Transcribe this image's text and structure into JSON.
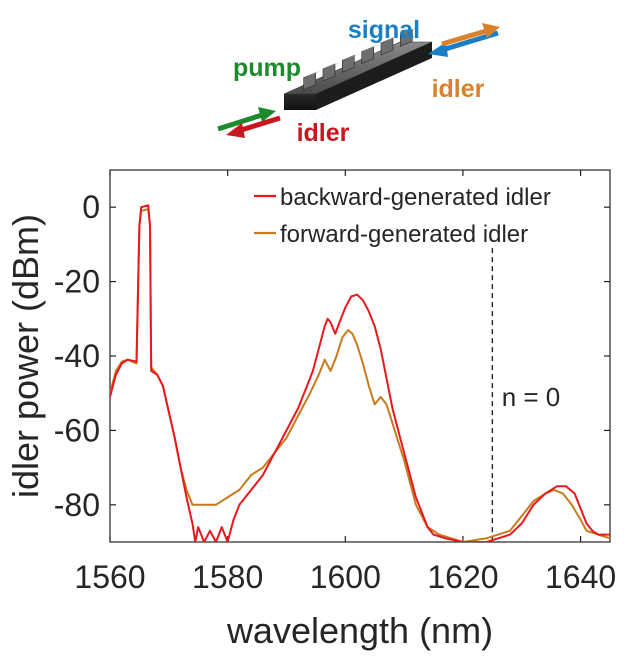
{
  "inset": {
    "labels": {
      "signal": "signal",
      "pump": "pump",
      "idler_forward": "idler",
      "idler_backward": "idler"
    },
    "colors": {
      "signal": "#1a7fc4",
      "pump": "#1e8a2e",
      "idler_forward": "#d9822b",
      "idler_backward": "#c8171e",
      "waveguide": "#3a3a3a"
    }
  },
  "chart_data": {
    "type": "line",
    "xlabel": "wavelength (nm)",
    "ylabel": "idler power (dBm)",
    "xlim": [
      1560,
      1645
    ],
    "ylim": [
      -90,
      10
    ],
    "xticks": [
      1560,
      1580,
      1600,
      1620,
      1640
    ],
    "yticks": [
      0,
      -20,
      -40,
      -60,
      -80
    ],
    "grid": false,
    "legend_position": "top-right",
    "annotation": {
      "text": "n = 0",
      "x_line": 1625
    },
    "series": [
      {
        "name": "backward-generated idler",
        "color": "#e8191e",
        "points": [
          [
            1560,
            -51
          ],
          [
            1561,
            -45
          ],
          [
            1562,
            -42
          ],
          [
            1563,
            -41
          ],
          [
            1564.5,
            -41.5
          ],
          [
            1565,
            -5
          ],
          [
            1565.3,
            0
          ],
          [
            1566.5,
            0.5
          ],
          [
            1566.8,
            -5
          ],
          [
            1567,
            -44
          ],
          [
            1568,
            -45
          ],
          [
            1569,
            -48
          ],
          [
            1570,
            -55
          ],
          [
            1571,
            -62
          ],
          [
            1572,
            -70
          ],
          [
            1573,
            -78
          ],
          [
            1574,
            -85
          ],
          [
            1574.5,
            -90
          ],
          [
            1575,
            -86
          ],
          [
            1576,
            -90
          ],
          [
            1577,
            -87
          ],
          [
            1578,
            -90
          ],
          [
            1579,
            -86
          ],
          [
            1580,
            -90
          ],
          [
            1581,
            -84
          ],
          [
            1582,
            -80
          ],
          [
            1584,
            -76
          ],
          [
            1586,
            -72
          ],
          [
            1588,
            -66
          ],
          [
            1590,
            -60
          ],
          [
            1592,
            -54
          ],
          [
            1593.5,
            -48
          ],
          [
            1594.5,
            -44
          ],
          [
            1595.5,
            -38
          ],
          [
            1596.5,
            -32
          ],
          [
            1597,
            -30
          ],
          [
            1597.5,
            -31
          ],
          [
            1598.3,
            -34
          ],
          [
            1599,
            -31
          ],
          [
            1600,
            -27
          ],
          [
            1601,
            -24
          ],
          [
            1602,
            -23.5
          ],
          [
            1603,
            -25
          ],
          [
            1604,
            -28
          ],
          [
            1605,
            -32
          ],
          [
            1606,
            -38
          ],
          [
            1607,
            -46
          ],
          [
            1608,
            -54
          ],
          [
            1609,
            -60
          ],
          [
            1610,
            -66
          ],
          [
            1611,
            -72
          ],
          [
            1612,
            -78
          ],
          [
            1613,
            -82
          ],
          [
            1614,
            -86
          ],
          [
            1615,
            -88
          ],
          [
            1617,
            -89
          ],
          [
            1620,
            -90
          ],
          [
            1624,
            -90
          ],
          [
            1626,
            -89
          ],
          [
            1628,
            -88
          ],
          [
            1630,
            -85
          ],
          [
            1632,
            -80
          ],
          [
            1634,
            -77
          ],
          [
            1636,
            -75
          ],
          [
            1637.5,
            -75
          ],
          [
            1639,
            -77
          ],
          [
            1640,
            -81
          ],
          [
            1641,
            -85
          ],
          [
            1642,
            -87
          ],
          [
            1643,
            -88
          ],
          [
            1645,
            -88
          ]
        ]
      },
      {
        "name": "forward-generated idler",
        "color": "#c87b1e",
        "points": [
          [
            1560,
            -50
          ],
          [
            1561,
            -44
          ],
          [
            1562,
            -41.5
          ],
          [
            1563,
            -41
          ],
          [
            1564.5,
            -42
          ],
          [
            1565,
            -5
          ],
          [
            1565.3,
            -1
          ],
          [
            1566.5,
            -0.5
          ],
          [
            1566.8,
            -5
          ],
          [
            1567,
            -43
          ],
          [
            1568,
            -45
          ],
          [
            1569,
            -48
          ],
          [
            1570,
            -55
          ],
          [
            1571,
            -62
          ],
          [
            1572,
            -70
          ],
          [
            1573,
            -76
          ],
          [
            1574,
            -80
          ],
          [
            1576,
            -80
          ],
          [
            1578,
            -80
          ],
          [
            1580,
            -78
          ],
          [
            1582,
            -76
          ],
          [
            1584,
            -72
          ],
          [
            1586,
            -70
          ],
          [
            1588,
            -66
          ],
          [
            1590,
            -62
          ],
          [
            1592,
            -56
          ],
          [
            1594,
            -50
          ],
          [
            1595.5,
            -45
          ],
          [
            1596.5,
            -41
          ],
          [
            1597.5,
            -44
          ],
          [
            1598.5,
            -40
          ],
          [
            1599.5,
            -35
          ],
          [
            1600.5,
            -33
          ],
          [
            1601.2,
            -34
          ],
          [
            1602,
            -37
          ],
          [
            1603,
            -42
          ],
          [
            1604,
            -48
          ],
          [
            1605,
            -53
          ],
          [
            1606,
            -51
          ],
          [
            1607,
            -53
          ],
          [
            1608,
            -58
          ],
          [
            1609,
            -63
          ],
          [
            1610,
            -68
          ],
          [
            1611,
            -74
          ],
          [
            1612,
            -80
          ],
          [
            1613,
            -83
          ],
          [
            1614,
            -86
          ],
          [
            1616,
            -88
          ],
          [
            1618,
            -89
          ],
          [
            1620,
            -90
          ],
          [
            1624,
            -89
          ],
          [
            1626,
            -88
          ],
          [
            1628,
            -87
          ],
          [
            1630,
            -83
          ],
          [
            1632,
            -79
          ],
          [
            1634,
            -77
          ],
          [
            1635.5,
            -76
          ],
          [
            1637,
            -77
          ],
          [
            1638.5,
            -80
          ],
          [
            1640,
            -84
          ],
          [
            1641,
            -87
          ],
          [
            1643,
            -88
          ],
          [
            1645,
            -89
          ]
        ]
      }
    ]
  }
}
